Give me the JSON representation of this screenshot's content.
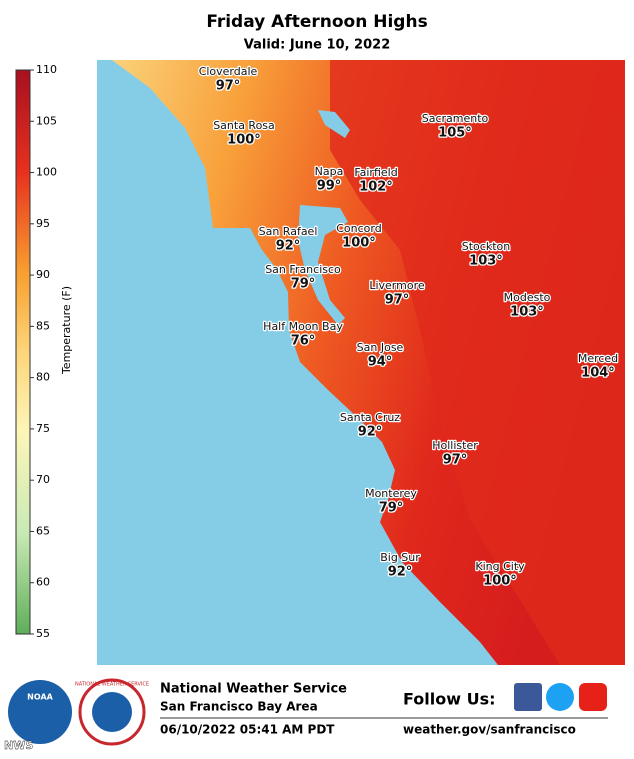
{
  "header": {
    "title": "Friday Afternoon Highs",
    "subtitle": "Valid: June 10, 2022"
  },
  "legend": {
    "label": "Temperature (F)",
    "ticks": [
      55,
      60,
      65,
      70,
      75,
      80,
      85,
      90,
      95,
      100,
      105,
      110
    ]
  },
  "cities": [
    {
      "name": "Cloverdale",
      "temp": "97°"
    },
    {
      "name": "Santa Rosa",
      "temp": "100°"
    },
    {
      "name": "Napa",
      "temp": "99°"
    },
    {
      "name": "Fairfield",
      "temp": "102°"
    },
    {
      "name": "Sacramento",
      "temp": "105°"
    },
    {
      "name": "San Rafael",
      "temp": "92°"
    },
    {
      "name": "Concord",
      "temp": "100°"
    },
    {
      "name": "Stockton",
      "temp": "103°"
    },
    {
      "name": "San Francisco",
      "temp": "79°"
    },
    {
      "name": "Livermore",
      "temp": "97°"
    },
    {
      "name": "Modesto",
      "temp": "103°"
    },
    {
      "name": "Half Moon Bay",
      "temp": "76°"
    },
    {
      "name": "San Jose",
      "temp": "94°"
    },
    {
      "name": "Merced",
      "temp": "104°"
    },
    {
      "name": "Santa Cruz",
      "temp": "92°"
    },
    {
      "name": "Hollister",
      "temp": "97°"
    },
    {
      "name": "Monterey",
      "temp": "79°"
    },
    {
      "name": "Big Sur",
      "temp": "92°"
    },
    {
      "name": "King City",
      "temp": "100°"
    }
  ],
  "footer": {
    "noaa": "NOAA",
    "nws_ring": "NATIONAL WEATHER SERVICE",
    "agency": "National Weather Service",
    "office": "San Francisco Bay Area",
    "issued": "06/10/2022 05:41 AM PDT",
    "follow": "Follow Us:",
    "url": "weather.gov/sanfrancisco",
    "watermark": "NWS"
  }
}
